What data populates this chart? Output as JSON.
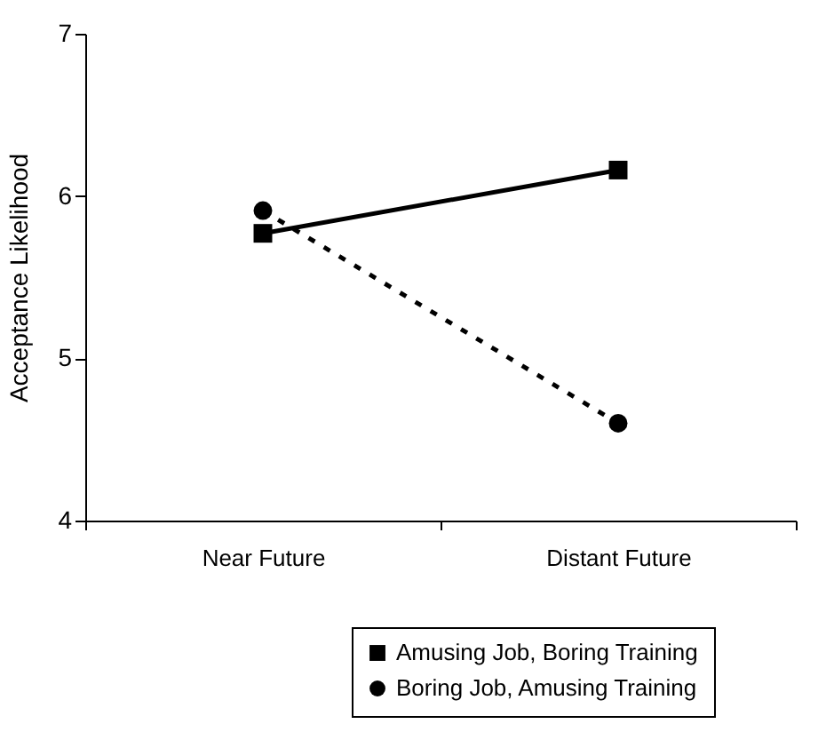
{
  "chart_data": {
    "type": "line",
    "ylabel": "Acceptance Likelihood",
    "categories": [
      "Near Future",
      "Distant Future"
    ],
    "ylim": [
      4,
      7
    ],
    "yticks": [
      4,
      5,
      6,
      7
    ],
    "grid": false,
    "legend": "bottom right",
    "series": [
      {
        "name": "Amusing Job, Boring Training",
        "color": "#000000",
        "marker": "square",
        "line_style": "solid",
        "values": [
          5.77,
          6.16
        ]
      },
      {
        "name": "Boring Job, Amusing Training",
        "color": "#000000",
        "marker": "circle",
        "line_style": "dotted",
        "values": [
          5.91,
          4.6
        ]
      }
    ]
  }
}
